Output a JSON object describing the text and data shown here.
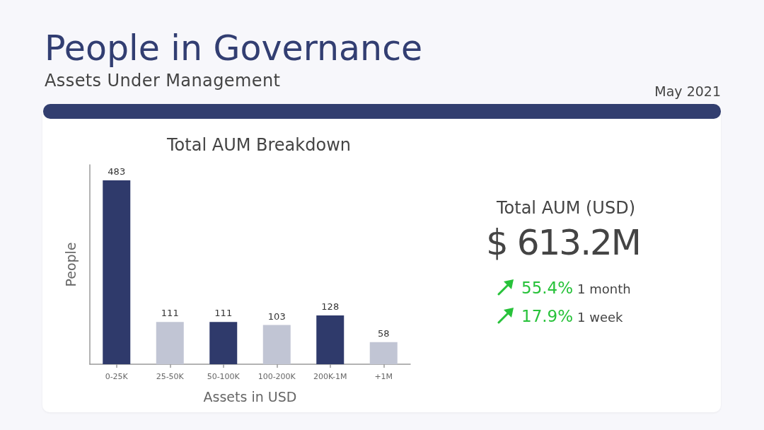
{
  "chart_data": [
    {
      "type": "other",
      "title": "People in Governance",
      "subtitle": "Assets Under Management",
      "annotations": [
        "May 2021"
      ]
    },
    {
      "type": "bar",
      "title": "Total AUM Breakdown",
      "xlabel": "Assets in USD",
      "ylabel": "People",
      "categories": [
        "0-25K",
        "25-50K",
        "50-100K",
        "100-200K",
        "200K-1M",
        "+1M"
      ],
      "values": [
        483,
        111,
        111,
        103,
        128,
        58
      ],
      "colors": [
        "#2f3a6b",
        "#c1c5d4",
        "#2f3a6b",
        "#c1c5d4",
        "#2f3a6b",
        "#c1c5d4"
      ],
      "data_labels": true,
      "tick_labels": "x"
    },
    {
      "type": "other",
      "title": "Total AUM (USD)",
      "annotations": [
        "$ 613.2M",
        "55.4%",
        "1 month",
        "17.9%",
        "1 week"
      ]
    }
  ]
}
